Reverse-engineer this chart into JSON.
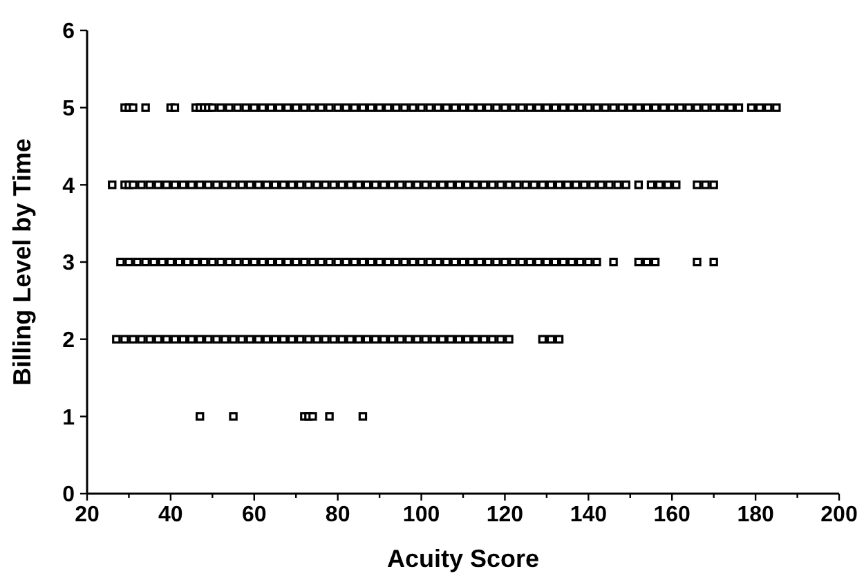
{
  "chart_data": {
    "type": "scatter",
    "xlabel": "Acuity Score",
    "ylabel": "Billing Level by Time",
    "xlim": [
      20,
      200
    ],
    "ylim": [
      0,
      6
    ],
    "xticks": [
      20,
      {
        "value": 30,
        "label": null
      },
      40,
      {
        "value": 50,
        "label": null
      },
      60,
      {
        "value": 70,
        "label": null
      },
      80,
      {
        "value": 90,
        "label": null
      },
      100,
      {
        "value": 110,
        "label": null
      },
      120,
      {
        "value": 130,
        "label": null
      },
      140,
      {
        "value": 150,
        "label": null
      },
      160,
      {
        "value": 170,
        "label": null
      },
      180,
      {
        "value": 190,
        "label": null
      },
      200
    ],
    "yticks": [
      0,
      1,
      2,
      3,
      4,
      5,
      6
    ],
    "marker": "square",
    "grid": false,
    "series": [
      {
        "color": "#000000",
        "x": [
          29,
          30,
          31,
          34,
          40,
          41,
          46,
          47,
          48,
          49,
          50,
          52,
          54,
          56,
          58,
          60,
          62,
          64,
          66,
          68,
          70,
          72,
          74,
          76,
          78,
          80,
          82,
          84,
          86,
          88,
          90,
          92,
          94,
          96,
          98,
          100,
          102,
          104,
          106,
          108,
          110,
          112,
          114,
          116,
          118,
          120,
          122,
          124,
          126,
          128,
          130,
          132,
          134,
          136,
          138,
          140,
          142,
          144,
          146,
          148,
          150,
          152,
          154,
          156,
          158,
          160,
          162,
          164,
          166,
          168,
          170,
          172,
          174,
          176,
          179,
          181,
          183,
          185
        ],
        "values": [
          5,
          5,
          5,
          5,
          5,
          5,
          5,
          5,
          5,
          5,
          5,
          5,
          5,
          5,
          5,
          5,
          5,
          5,
          5,
          5,
          5,
          5,
          5,
          5,
          5,
          5,
          5,
          5,
          5,
          5,
          5,
          5,
          5,
          5,
          5,
          5,
          5,
          5,
          5,
          5,
          5,
          5,
          5,
          5,
          5,
          5,
          5,
          5,
          5,
          5,
          5,
          5,
          5,
          5,
          5,
          5,
          5,
          5,
          5,
          5,
          5,
          5,
          5,
          5,
          5,
          5,
          5,
          5,
          5,
          5,
          5,
          5,
          5,
          5,
          5,
          5,
          5,
          5
        ]
      },
      {
        "color": "#000000",
        "x": [
          26,
          29,
          30,
          31,
          33,
          35,
          37,
          39,
          41,
          43,
          45,
          47,
          49,
          51,
          53,
          55,
          57,
          59,
          61,
          63,
          65,
          67,
          69,
          71,
          73,
          75,
          77,
          79,
          81,
          83,
          85,
          87,
          89,
          91,
          93,
          95,
          97,
          99,
          101,
          103,
          105,
          107,
          109,
          111,
          113,
          115,
          117,
          119,
          121,
          123,
          125,
          127,
          129,
          131,
          133,
          135,
          137,
          139,
          141,
          143,
          145,
          147,
          149,
          152,
          155,
          157,
          159,
          161,
          166,
          168,
          170
        ],
        "values": [
          4,
          4,
          4,
          4,
          4,
          4,
          4,
          4,
          4,
          4,
          4,
          4,
          4,
          4,
          4,
          4,
          4,
          4,
          4,
          4,
          4,
          4,
          4,
          4,
          4,
          4,
          4,
          4,
          4,
          4,
          4,
          4,
          4,
          4,
          4,
          4,
          4,
          4,
          4,
          4,
          4,
          4,
          4,
          4,
          4,
          4,
          4,
          4,
          4,
          4,
          4,
          4,
          4,
          4,
          4,
          4,
          4,
          4,
          4,
          4,
          4,
          4,
          4,
          4,
          4,
          4,
          4,
          4,
          4,
          4,
          4
        ]
      },
      {
        "color": "#000000",
        "x": [
          28,
          30,
          32,
          34,
          36,
          38,
          40,
          42,
          44,
          46,
          48,
          50,
          52,
          54,
          56,
          58,
          60,
          62,
          64,
          66,
          68,
          70,
          72,
          74,
          76,
          78,
          80,
          82,
          84,
          86,
          88,
          90,
          92,
          94,
          96,
          98,
          100,
          102,
          104,
          106,
          108,
          110,
          112,
          114,
          116,
          118,
          120,
          122,
          124,
          126,
          128,
          130,
          132,
          134,
          136,
          138,
          140,
          142,
          146,
          152,
          154,
          156,
          166,
          170
        ],
        "values": [
          3,
          3,
          3,
          3,
          3,
          3,
          3,
          3,
          3,
          3,
          3,
          3,
          3,
          3,
          3,
          3,
          3,
          3,
          3,
          3,
          3,
          3,
          3,
          3,
          3,
          3,
          3,
          3,
          3,
          3,
          3,
          3,
          3,
          3,
          3,
          3,
          3,
          3,
          3,
          3,
          3,
          3,
          3,
          3,
          3,
          3,
          3,
          3,
          3,
          3,
          3,
          3,
          3,
          3,
          3,
          3,
          3,
          3,
          3,
          3,
          3,
          3,
          3,
          3
        ]
      },
      {
        "color": "#000000",
        "x": [
          27,
          29,
          31,
          33,
          35,
          37,
          39,
          41,
          43,
          45,
          47,
          49,
          51,
          53,
          55,
          57,
          59,
          61,
          63,
          65,
          67,
          69,
          71,
          73,
          75,
          77,
          79,
          81,
          83,
          85,
          87,
          89,
          91,
          93,
          95,
          97,
          99,
          101,
          103,
          105,
          107,
          109,
          111,
          113,
          115,
          117,
          119,
          121,
          129,
          131,
          133
        ],
        "values": [
          2,
          2,
          2,
          2,
          2,
          2,
          2,
          2,
          2,
          2,
          2,
          2,
          2,
          2,
          2,
          2,
          2,
          2,
          2,
          2,
          2,
          2,
          2,
          2,
          2,
          2,
          2,
          2,
          2,
          2,
          2,
          2,
          2,
          2,
          2,
          2,
          2,
          2,
          2,
          2,
          2,
          2,
          2,
          2,
          2,
          2,
          2,
          2,
          2,
          2,
          2
        ]
      },
      {
        "color": "#000000",
        "x": [
          47,
          55,
          72,
          73,
          74,
          78,
          86
        ],
        "values": [
          1,
          1,
          1,
          1,
          1,
          1,
          1
        ]
      }
    ]
  }
}
